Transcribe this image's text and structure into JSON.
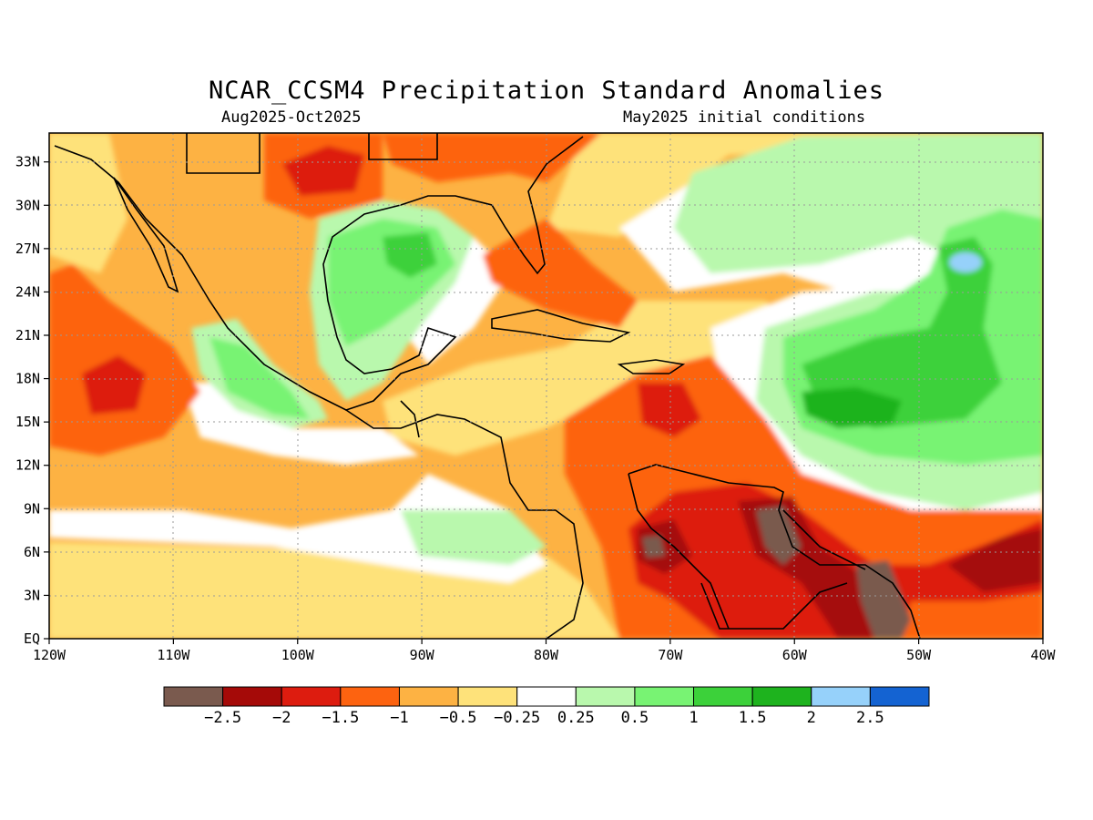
{
  "title": "NCAR_CCSM4 Precipitation Standard Anomalies",
  "subtitle_left": "Aug2025-Oct2025",
  "subtitle_right": "May2025 initial conditions",
  "lat_ticks": [
    "33N",
    "30N",
    "27N",
    "24N",
    "21N",
    "18N",
    "15N",
    "12N",
    "9N",
    "6N",
    "3N",
    "EQ"
  ],
  "lon_ticks": [
    "120W",
    "110W",
    "100W",
    "90W",
    "80W",
    "70W",
    "60W",
    "50W",
    "40W"
  ],
  "colorbar": {
    "colors": [
      "#7a5a4e",
      "#a50a08",
      "#dd1c0f",
      "#fd6310",
      "#fdb243",
      "#fee27a",
      "#ffffff",
      "#b9f8ad",
      "#78f373",
      "#3cd13a",
      "#1eb31e",
      "#96d1fa",
      "#1463d2"
    ],
    "labels": [
      "-2.5",
      "-2",
      "-1.5",
      "-1",
      "-0.5",
      "-0.25",
      "0.25",
      "0.5",
      "1",
      "1.5",
      "2",
      "2.5"
    ]
  },
  "colors": {
    "land_outline": "#000000",
    "grid": "#9a9a9a"
  }
}
